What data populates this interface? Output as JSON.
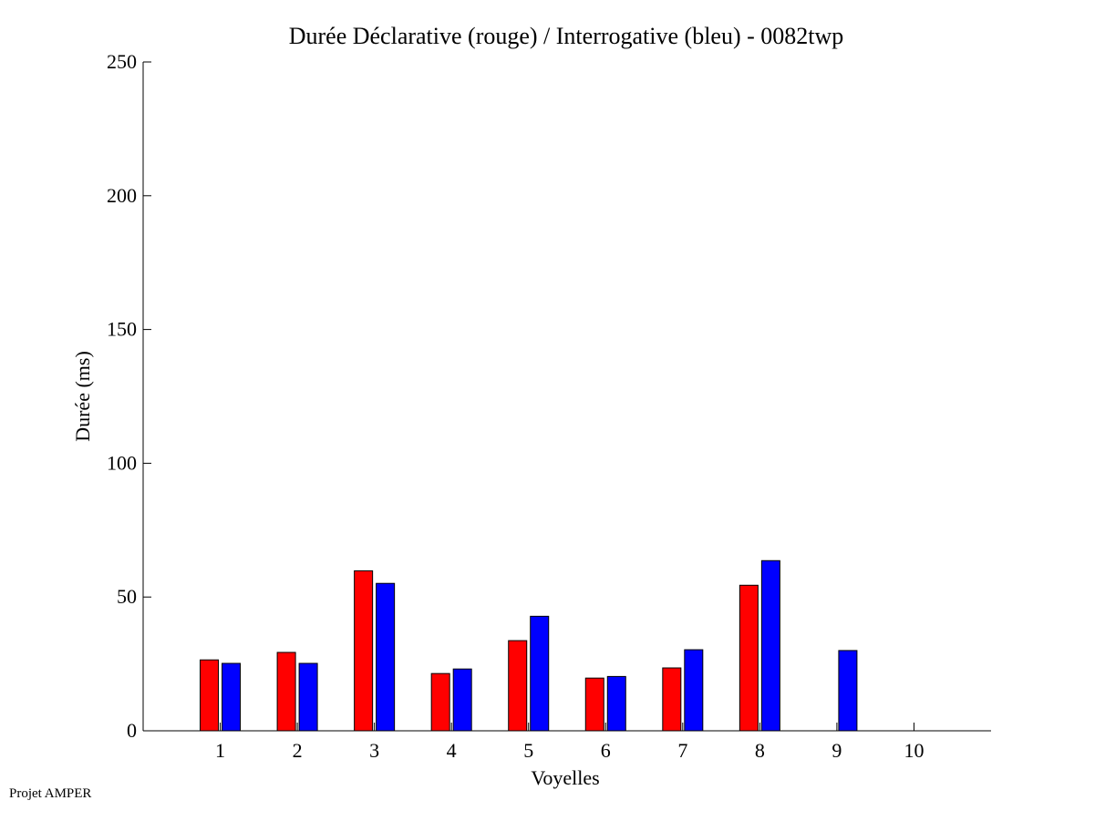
{
  "footer_text": "Projet AMPER",
  "chart_data": {
    "type": "bar",
    "title": "Durée Déclarative (rouge) / Interrogative (bleu) - 0082twp",
    "xlabel": "Voyelles",
    "ylabel": "Durée (ms)",
    "categories": [
      "1",
      "2",
      "3",
      "4",
      "5",
      "6",
      "7",
      "8",
      "9",
      "10"
    ],
    "ylim": [
      0,
      250
    ],
    "xlim": [
      0,
      11
    ],
    "yticks": [
      0,
      50,
      100,
      150,
      200,
      250
    ],
    "grid": false,
    "series": [
      {
        "color": "#ff0000",
        "values": [
          26.5,
          29.3,
          59.8,
          21.4,
          33.7,
          19.7,
          23.5,
          54.4,
          null,
          null
        ]
      },
      {
        "color": "#0000ff",
        "values": [
          25.2,
          25.2,
          55.1,
          23.1,
          42.8,
          20.3,
          30.3,
          63.6,
          30.0,
          null
        ]
      }
    ]
  }
}
